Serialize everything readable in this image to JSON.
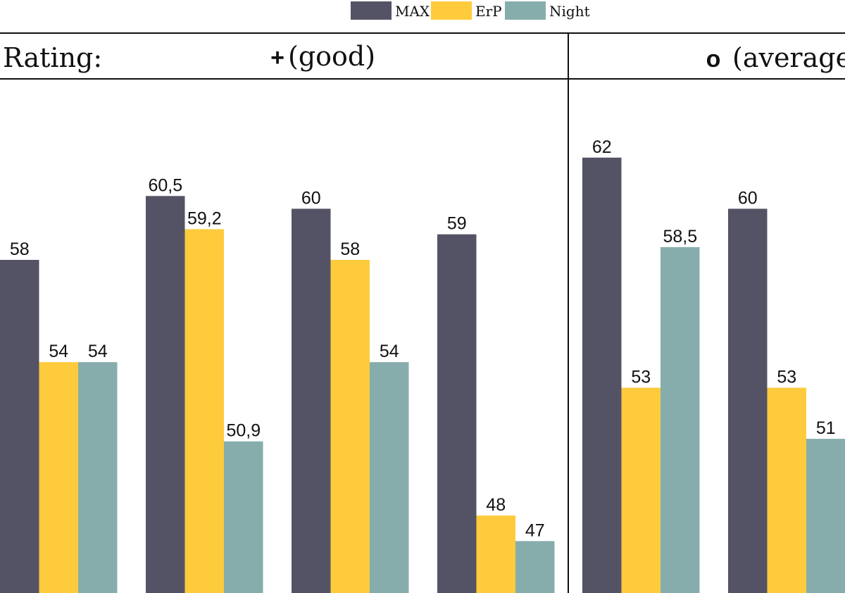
{
  "chart_data": {
    "type": "bar",
    "legend": {
      "position": "top-center",
      "entries": [
        {
          "name": "MAX",
          "color": "#545366"
        },
        {
          "name": "ErP",
          "color": "#FECB3D"
        },
        {
          "name": "Night",
          "color": "#86ADAC"
        }
      ]
    },
    "header": {
      "label": "Rating:",
      "ratings": [
        {
          "symbol": "+",
          "text": "(good)"
        },
        {
          "symbol": "o",
          "text": "(average)"
        }
      ]
    },
    "ylim": [
      40,
      70
    ],
    "groups": [
      {
        "rating": "+ (good)",
        "values": [
          58,
          54,
          54
        ],
        "labels": [
          "58",
          "54",
          "54"
        ]
      },
      {
        "rating": "+ (good)",
        "values": [
          60.5,
          59.2,
          50.9
        ],
        "labels": [
          "60,5",
          "59,2",
          "50,9"
        ]
      },
      {
        "rating": "+ (good)",
        "values": [
          60,
          58,
          54
        ],
        "labels": [
          "60",
          "58",
          "54"
        ]
      },
      {
        "rating": "+ (good)",
        "values": [
          59,
          48,
          47
        ],
        "labels": [
          "59",
          "48",
          "47"
        ]
      },
      {
        "rating": "o (average)",
        "values": [
          62,
          53,
          58.5
        ],
        "labels": [
          "62",
          "53",
          "58,5"
        ]
      },
      {
        "rating": "o (average)",
        "values": [
          60,
          53,
          51
        ],
        "labels": [
          "60",
          "53",
          "51"
        ]
      }
    ]
  }
}
